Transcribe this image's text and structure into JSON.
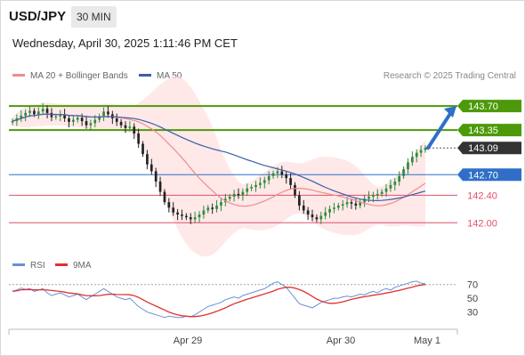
{
  "header": {
    "symbol": "USD/JPY",
    "timeframe": "30 MIN",
    "datetime": "Wednesday, April 30, 2025 1:11:46 PM CET",
    "credit": "Research © 2025 Trading Central"
  },
  "legend": {
    "ma20_label": "MA 20 + Bollinger Bands",
    "ma50_label": "MA 50",
    "rsi_label": "RSI",
    "rsi_ma_label": "9MA"
  },
  "colors": {
    "ma20": "#f08c8c",
    "ma50": "#3a5fa8",
    "band_fill": "#fde0e0",
    "resistance": "#4c9a0a",
    "pivot": "#2f6fc8",
    "support": "#e0506a",
    "last_price": "#333333",
    "arrow": "#2f6fc8",
    "rsi": "#6a8fd8",
    "rsi_ma": "#e03030"
  },
  "chart_data": [
    {
      "type": "candlestick",
      "title": "USD/JPY",
      "x_ticks": [
        "Apr 29",
        "Apr 30",
        "May 1"
      ],
      "ylim": [
        141.9,
        144.0
      ],
      "levels": [
        {
          "label": "143.70",
          "value": 143.7,
          "kind": "resistance"
        },
        {
          "label": "143.35",
          "value": 143.35,
          "kind": "resistance"
        },
        {
          "label": "143.09",
          "value": 143.09,
          "kind": "last"
        },
        {
          "label": "142.70",
          "value": 142.7,
          "kind": "pivot"
        },
        {
          "label": "142.40",
          "value": 142.4,
          "kind": "support"
        },
        {
          "label": "142.00",
          "value": 142.0,
          "kind": "support"
        }
      ],
      "target_arrow": {
        "from": 143.09,
        "to": 143.7
      },
      "close": [
        143.48,
        143.52,
        143.56,
        143.6,
        143.63,
        143.58,
        143.62,
        143.66,
        143.6,
        143.54,
        143.55,
        143.58,
        143.52,
        143.47,
        143.5,
        143.53,
        143.48,
        143.42,
        143.45,
        143.5,
        143.55,
        143.62,
        143.58,
        143.52,
        143.47,
        143.42,
        143.38,
        143.4,
        143.3,
        143.15,
        143.0,
        142.85,
        142.75,
        142.6,
        142.45,
        142.3,
        142.22,
        142.15,
        142.12,
        142.1,
        142.08,
        142.05,
        142.08,
        142.12,
        142.18,
        142.22,
        142.2,
        142.25,
        142.3,
        142.35,
        142.38,
        142.42,
        142.4,
        142.45,
        142.5,
        142.52,
        142.55,
        142.58,
        142.62,
        142.68,
        142.72,
        142.75,
        142.7,
        142.65,
        142.55,
        142.4,
        142.25,
        142.18,
        142.12,
        142.08,
        142.05,
        142.1,
        142.15,
        142.2,
        142.22,
        142.25,
        142.27,
        142.3,
        142.28,
        142.25,
        142.3,
        142.35,
        142.38,
        142.4,
        142.42,
        142.45,
        142.5,
        142.55,
        142.6,
        142.68,
        142.78,
        142.88,
        142.96,
        143.02,
        143.06,
        143.09
      ],
      "rsi": [
        60,
        62,
        65,
        63,
        64,
        60,
        62,
        64,
        58,
        54,
        56,
        58,
        55,
        52,
        54,
        56,
        52,
        48,
        52,
        56,
        60,
        64,
        60,
        56,
        52,
        50,
        48,
        50,
        44,
        38,
        34,
        30,
        28,
        26,
        24,
        22,
        24,
        23,
        22,
        22,
        24,
        23,
        26,
        30,
        34,
        38,
        40,
        42,
        44,
        48,
        50,
        52,
        50,
        54,
        56,
        58,
        60,
        62,
        64,
        68,
        72,
        74,
        70,
        66,
        58,
        50,
        42,
        40,
        38,
        36,
        40,
        44,
        46,
        48,
        50,
        50,
        52,
        53,
        52,
        54,
        56,
        55,
        58,
        60,
        58,
        62,
        64,
        62,
        66,
        68,
        70,
        72,
        74,
        75,
        72,
        71
      ],
      "rsi_levels": [
        70,
        50,
        30
      ]
    }
  ]
}
